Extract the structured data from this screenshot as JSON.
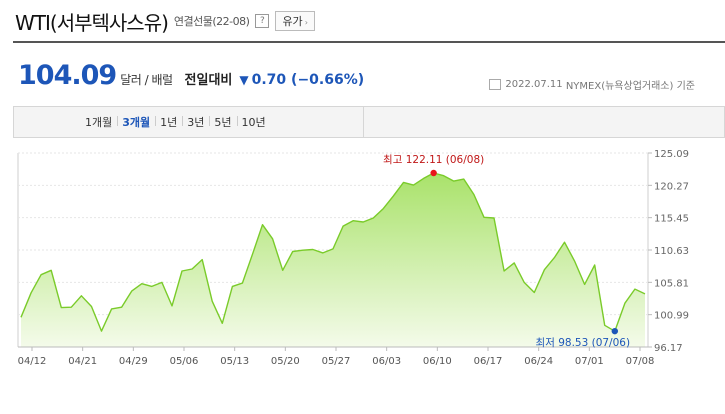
{
  "header": {
    "title": "WTI(서부텍사스유)",
    "contract": "연결선물(22-08)",
    "help_label": "?",
    "category_label": "유가",
    "category_arrow": "›"
  },
  "quote": {
    "price": "104.09",
    "unit": "달러 / 배럴",
    "compare_label": "전일대비",
    "direction_symbol": "▼",
    "change": "0.70 (−0.66%)",
    "meta_date": "2022.07.11",
    "meta_source": "NYMEX(뉴욕상업거래소)",
    "meta_suffix": "기준"
  },
  "tabs": [
    {
      "label": "1개월",
      "active": false
    },
    {
      "label": "3개월",
      "active": true
    },
    {
      "label": "1년",
      "active": false
    },
    {
      "label": "3년",
      "active": false
    },
    {
      "label": "5년",
      "active": false
    },
    {
      "label": "10년",
      "active": false
    }
  ],
  "colors": {
    "accent": "#1d56b8",
    "line": "#7acb2a",
    "fill_top": "#a9e26a",
    "fill_bottom": "#f4fbea",
    "max_marker": "#e8151b",
    "max_label": "#c01818",
    "min_marker": "#1d56b8",
    "min_label": "#1d56b8"
  },
  "chart_data": {
    "type": "area",
    "y_ticks": [
      "125.09",
      "120.27",
      "115.45",
      "110.63",
      "105.81",
      "100.99",
      "96.17"
    ],
    "y_range": [
      96.17,
      125.09
    ],
    "x_tick_labels": [
      "04/12",
      "04/21",
      "04/29",
      "05/06",
      "05/13",
      "05/20",
      "05/27",
      "06/03",
      "06/10",
      "06/17",
      "06/24",
      "07/01",
      "07/08"
    ],
    "series": [
      {
        "values": [
          100.6,
          104.25,
          106.95,
          107.6,
          102.05,
          102.1,
          103.8,
          102.2,
          98.54,
          101.85,
          102.1,
          104.5,
          105.6,
          105.2,
          105.8,
          102.3,
          107.5,
          107.8,
          109.2,
          103.0,
          99.7,
          105.2,
          105.7,
          110.0,
          114.4,
          112.3,
          107.6,
          110.4,
          110.6,
          110.7,
          110.2,
          110.8,
          114.2,
          115.0,
          114.8,
          115.4,
          116.8,
          118.7,
          120.7,
          120.3,
          121.3,
          122.11,
          121.7,
          120.9,
          121.2,
          118.9,
          115.5,
          115.4,
          107.5,
          108.7,
          105.8,
          104.3,
          107.7,
          109.5,
          111.8,
          109.0,
          105.5,
          108.4,
          99.4,
          98.53,
          102.7,
          104.8,
          104.09
        ],
        "color": "#7acb2a"
      }
    ],
    "annotations": [
      {
        "kind": "max",
        "index": 41,
        "value": 122.11,
        "text": "최고 122.11 (06/08)"
      },
      {
        "kind": "min",
        "index": 59,
        "value": 98.53,
        "text": "최저 98.53 (07/06)"
      }
    ],
    "grid": true,
    "legend": "none"
  }
}
